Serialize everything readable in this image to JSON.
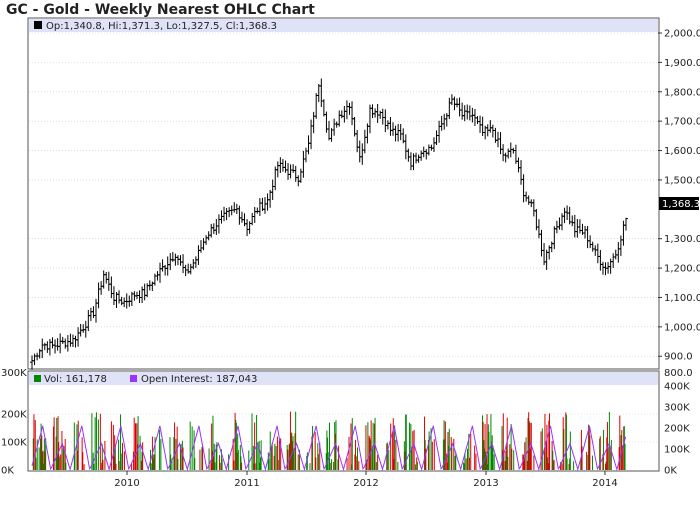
{
  "title": "GC - Gold - Weekly Nearest OHLC Chart",
  "colors": {
    "price_bar": "#000000",
    "legend_band": "#e0e2f8",
    "volume_up": "#008800",
    "volume_down": "#dd0000",
    "open_interest": "#9933ff",
    "gridline": "#c8c8c8",
    "last_price_label_bg": "#000000"
  },
  "price_panel": {
    "legend_text": "Op:1,340.8, Hi:1,371.3, Lo:1,327.5, Cl:1,368.3",
    "last_price_label": "1,368.3",
    "y_tick_labels": [
      "2,000.0",
      "1,900.0",
      "1,800.0",
      "1,700.0",
      "1,600.0",
      "1,500.0",
      "1,300.0",
      "1,200.0",
      "1,100.0",
      "1,000.0",
      "900.0"
    ]
  },
  "volume_panel": {
    "volume_legend": "Vol: 161,178",
    "oi_legend": "Open Interest: 187,043",
    "left_tick_labels": [
      "300K",
      "200K",
      "100K",
      "0K"
    ],
    "right_tick_labels": [
      "800.0",
      "400K",
      "300K",
      "200K",
      "100K",
      "0K"
    ]
  },
  "x_tick_labels": [
    "2010",
    "2011",
    "2012",
    "2013",
    "2014"
  ],
  "chart_data": {
    "type": "ohlc",
    "title": "GC - Gold - Weekly Nearest OHLC Chart",
    "date_range": [
      "2009-04",
      "2014-02"
    ],
    "price_axis": {
      "ylim": [
        860,
        2000
      ],
      "side": "right",
      "grid": true
    },
    "last_bar": {
      "open": 1340.8,
      "high": 1371.3,
      "low": 1327.5,
      "close": 1368.3
    },
    "price_series": {
      "name": "GC",
      "x": [
        "2009-04",
        "2009-05",
        "2009-06",
        "2009-07",
        "2009-08",
        "2009-09",
        "2009-10",
        "2009-11",
        "2009-12",
        "2010-01",
        "2010-02",
        "2010-03",
        "2010-04",
        "2010-05",
        "2010-06",
        "2010-07",
        "2010-08",
        "2010-09",
        "2010-10",
        "2010-11",
        "2010-12",
        "2011-01",
        "2011-02",
        "2011-03",
        "2011-04",
        "2011-05",
        "2011-06",
        "2011-07",
        "2011-08",
        "2011-09",
        "2011-10",
        "2011-11",
        "2011-12",
        "2012-01",
        "2012-02",
        "2012-03",
        "2012-04",
        "2012-05",
        "2012-06",
        "2012-07",
        "2012-08",
        "2012-09",
        "2012-10",
        "2012-11",
        "2012-12",
        "2013-01",
        "2013-02",
        "2013-03",
        "2013-04",
        "2013-05",
        "2013-06",
        "2013-07",
        "2013-08",
        "2013-09",
        "2013-10",
        "2013-11",
        "2013-12",
        "2014-01",
        "2014-02"
      ],
      "close": [
        885,
        940,
        935,
        945,
        955,
        1000,
        1050,
        1180,
        1100,
        1085,
        1110,
        1115,
        1170,
        1210,
        1250,
        1180,
        1230,
        1310,
        1350,
        1380,
        1400,
        1340,
        1400,
        1430,
        1550,
        1530,
        1510,
        1620,
        1830,
        1640,
        1720,
        1760,
        1570,
        1740,
        1730,
        1670,
        1650,
        1560,
        1600,
        1610,
        1690,
        1770,
        1720,
        1720,
        1660,
        1670,
        1580,
        1600,
        1460,
        1390,
        1230,
        1320,
        1400,
        1330,
        1320,
        1250,
        1200,
        1250,
        1368.3
      ]
    },
    "volume_axis": {
      "ylim_left": [
        0,
        300000
      ],
      "ylim_right": [
        0,
        400000
      ]
    },
    "volume_series": [
      {
        "name": "Vol",
        "last": 161178
      },
      {
        "name": "Open Interest",
        "last": 187043
      }
    ],
    "x_ticks": [
      "2010",
      "2011",
      "2012",
      "2013",
      "2014"
    ]
  }
}
